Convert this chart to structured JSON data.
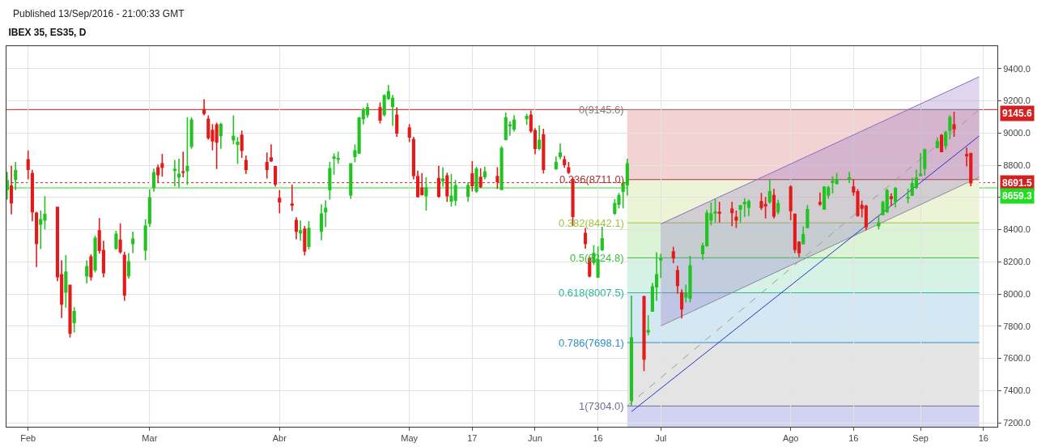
{
  "chart_data": {
    "type": "candlestick",
    "title": "IBEX 35, ES35, D",
    "annotations": [
      "Published 13/Sep/2016 - 21:00:33 GMT"
    ],
    "x": [
      "2016-01-27",
      "2016-01-28",
      "2016-01-29",
      "2016-02-01",
      "2016-02-02",
      "2016-02-03",
      "2016-02-04",
      "2016-02-05",
      "2016-02-08",
      "2016-02-09",
      "2016-02-10",
      "2016-02-11",
      "2016-02-12",
      "2016-02-15",
      "2016-02-16",
      "2016-02-17",
      "2016-02-18",
      "2016-02-19",
      "2016-02-22",
      "2016-02-23",
      "2016-02-24",
      "2016-02-25",
      "2016-02-26",
      "2016-02-29",
      "2016-03-01",
      "2016-03-02",
      "2016-03-03",
      "2016-03-04",
      "2016-03-07",
      "2016-03-08",
      "2016-03-09",
      "2016-03-10",
      "2016-03-11",
      "2016-03-14",
      "2016-03-15",
      "2016-03-16",
      "2016-03-17",
      "2016-03-18",
      "2016-03-21",
      "2016-03-22",
      "2016-03-23",
      "2016-03-24",
      "2016-03-29",
      "2016-03-30",
      "2016-03-31",
      "2016-04-01",
      "2016-04-04",
      "2016-04-05",
      "2016-04-06",
      "2016-04-07",
      "2016-04-08",
      "2016-04-11",
      "2016-04-12",
      "2016-04-13",
      "2016-04-14",
      "2016-04-15",
      "2016-04-18",
      "2016-04-19",
      "2016-04-20",
      "2016-04-21",
      "2016-04-22",
      "2016-04-25",
      "2016-04-26",
      "2016-04-27",
      "2016-04-28",
      "2016-04-29",
      "2016-05-02",
      "2016-05-03",
      "2016-05-04",
      "2016-05-05",
      "2016-05-06",
      "2016-05-09",
      "2016-05-10",
      "2016-05-11",
      "2016-05-12",
      "2016-05-13",
      "2016-05-16",
      "2016-05-17",
      "2016-05-18",
      "2016-05-19",
      "2016-05-20",
      "2016-05-23",
      "2016-05-24",
      "2016-05-25",
      "2016-05-26",
      "2016-05-27",
      "2016-05-30",
      "2016-05-31",
      "2016-06-01",
      "2016-06-02",
      "2016-06-03",
      "2016-06-06",
      "2016-06-07",
      "2016-06-08",
      "2016-06-09",
      "2016-06-10",
      "2016-06-13",
      "2016-06-14",
      "2016-06-15",
      "2016-06-16",
      "2016-06-17",
      "2016-06-20",
      "2016-06-21",
      "2016-06-22",
      "2016-06-23",
      "2016-06-24",
      "2016-06-27",
      "2016-06-28",
      "2016-06-29",
      "2016-06-30",
      "2016-07-01",
      "2016-07-04",
      "2016-07-05",
      "2016-07-06",
      "2016-07-07",
      "2016-07-08",
      "2016-07-11",
      "2016-07-12",
      "2016-07-13",
      "2016-07-14",
      "2016-07-15",
      "2016-07-18",
      "2016-07-19",
      "2016-07-20",
      "2016-07-21",
      "2016-07-22",
      "2016-07-25",
      "2016-07-26",
      "2016-07-27",
      "2016-07-28",
      "2016-07-29",
      "2016-08-01",
      "2016-08-02",
      "2016-08-03",
      "2016-08-04",
      "2016-08-05",
      "2016-08-08",
      "2016-08-09",
      "2016-08-10",
      "2016-08-11",
      "2016-08-12",
      "2016-08-15",
      "2016-08-16",
      "2016-08-17",
      "2016-08-18",
      "2016-08-19",
      "2016-08-22",
      "2016-08-23",
      "2016-08-24",
      "2016-08-25",
      "2016-08-26",
      "2016-08-29",
      "2016-08-30",
      "2016-08-31",
      "2016-09-01",
      "2016-09-02",
      "2016-09-05",
      "2016-09-06",
      "2016-09-07",
      "2016-09-08",
      "2016-09-09",
      "2016-09-12",
      "2016-09-13"
    ],
    "ohlc": [
      [
        8648,
        8759,
        8586,
        8704
      ],
      [
        8670,
        8796,
        8494,
        8566
      ],
      [
        8712,
        8821,
        8645,
        8766
      ],
      [
        8834,
        8892,
        8712,
        8774
      ],
      [
        8749,
        8771,
        8452,
        8511
      ],
      [
        8502,
        8511,
        8167,
        8314
      ],
      [
        8435,
        8519,
        8279,
        8462
      ],
      [
        8460,
        8608,
        8402,
        8494
      ],
      [
        8539,
        8539,
        8079,
        8108
      ],
      [
        8120,
        8209,
        7851,
        7937
      ],
      [
        8012,
        8242,
        7915,
        8136
      ],
      [
        8054,
        8054,
        7730,
        7756
      ],
      [
        7823,
        7918,
        7761,
        7890
      ],
      [
        8113,
        8209,
        8066,
        8170
      ],
      [
        8230,
        8247,
        8083,
        8108
      ],
      [
        8150,
        8363,
        8133,
        8346
      ],
      [
        8392,
        8472,
        8251,
        8271
      ],
      [
        8271,
        8331,
        8103,
        8133
      ],
      [
        8284,
        8393,
        8276,
        8371
      ],
      [
        8334,
        8439,
        8251,
        8264
      ],
      [
        8240,
        8262,
        7957,
        7994
      ],
      [
        8113,
        8254,
        8096,
        8200
      ],
      [
        8314,
        8388,
        8254,
        8341
      ],
      [
        8274,
        8464,
        8209,
        8422
      ],
      [
        8440,
        8650,
        8418,
        8598
      ],
      [
        8662,
        8779,
        8636,
        8754
      ],
      [
        8784,
        8804,
        8690,
        8742
      ],
      [
        8809,
        8871,
        8729,
        8788
      ],
      [
        8769,
        8833,
        8670,
        8774
      ],
      [
        8727,
        8841,
        8662,
        8744
      ],
      [
        8759,
        8885,
        8725,
        8756
      ],
      [
        8767,
        9098,
        8678,
        8791
      ],
      [
        8918,
        9098,
        8902,
        9081
      ],
      [
        9145,
        9210,
        9110,
        9123
      ],
      [
        9086,
        9110,
        8959,
        8972
      ],
      [
        9016,
        9056,
        8892,
        8952
      ],
      [
        9051,
        9064,
        8776,
        8944
      ],
      [
        8984,
        9064,
        8902,
        9053
      ],
      [
        8959,
        9110,
        8930,
        8980
      ],
      [
        8930,
        8975,
        8808,
        8942
      ],
      [
        8986,
        9016,
        8846,
        8893
      ],
      [
        8829,
        8861,
        8746,
        8774
      ],
      [
        8816,
        8880,
        8717,
        8774
      ],
      [
        8845,
        8930,
        8821,
        8828
      ],
      [
        8791,
        8796,
        8667,
        8683
      ],
      [
        8594,
        8645,
        8502,
        8573
      ],
      [
        8558,
        8679,
        8516,
        8553
      ],
      [
        8457,
        8477,
        8340,
        8390
      ],
      [
        8381,
        8457,
        8331,
        8393
      ],
      [
        8402,
        8423,
        8239,
        8267
      ],
      [
        8296,
        8452,
        8276,
        8407
      ],
      [
        8390,
        8558,
        8334,
        8497
      ],
      [
        8511,
        8581,
        8415,
        8532
      ],
      [
        8648,
        8821,
        8586,
        8779
      ],
      [
        8845,
        8875,
        8741,
        8850
      ],
      [
        8838,
        8885,
        8809,
        8841
      ],
      [
        8616,
        8813,
        8591,
        8809
      ],
      [
        8855,
        8930,
        8818,
        8890
      ],
      [
        8876,
        9101,
        8871,
        9093
      ],
      [
        9090,
        9157,
        9053,
        9143
      ],
      [
        9115,
        9187,
        9095,
        9157
      ],
      [
        9157,
        9190,
        9059,
        9081
      ],
      [
        9115,
        9241,
        9103,
        9232
      ],
      [
        9215,
        9299,
        9207,
        9257
      ],
      [
        9165,
        9237,
        9044,
        9215
      ],
      [
        9111,
        9160,
        8977,
        9001
      ],
      [
        9031,
        9056,
        8944,
        8975
      ],
      [
        8960,
        8977,
        8712,
        8737
      ],
      [
        8729,
        8766,
        8600,
        8606
      ],
      [
        8658,
        8751,
        8611,
        8618
      ],
      [
        8611,
        8725,
        8519,
        8658
      ],
      [
        8717,
        8796,
        8598,
        8608
      ],
      [
        8704,
        8788,
        8667,
        8714
      ],
      [
        8734,
        8754,
        8573,
        8611
      ],
      [
        8578,
        8746,
        8544,
        8608
      ],
      [
        8583,
        8709,
        8549,
        8673
      ],
      [
        8608,
        8695,
        8573,
        8673
      ],
      [
        8746,
        8826,
        8637,
        8673
      ],
      [
        8640,
        8791,
        8628,
        8776
      ],
      [
        8724,
        8782,
        8658,
        8667
      ],
      [
        8729,
        8791,
        8712,
        8759
      ],
      [
        8729,
        8788,
        8653,
        8699
      ],
      [
        8650,
        8918,
        8645,
        8905
      ],
      [
        8960,
        9128,
        8955,
        9095
      ],
      [
        9046,
        9073,
        8984,
        9051
      ],
      [
        9026,
        9111,
        9009,
        9081
      ],
      [
        9090,
        9120,
        9051,
        9103
      ],
      [
        9111,
        9140,
        9002,
        9014
      ],
      [
        9014,
        9031,
        8868,
        8905
      ],
      [
        8905,
        9048,
        8893,
        8955
      ],
      [
        8989,
        9027,
        8749,
        8774
      ],
      [
        8779,
        8855,
        8771,
        8818
      ],
      [
        8855,
        8935,
        8838,
        8875
      ],
      [
        8834,
        8858,
        8784,
        8804
      ],
      [
        8784,
        8821,
        8746,
        8757
      ],
      [
        8712,
        8724,
        8422,
        8482
      ],
      [
        8376,
        8410,
        8281,
        8314
      ],
      [
        8220,
        8230,
        8103,
        8113
      ],
      [
        8197,
        8304,
        8180,
        8251
      ],
      [
        8105,
        8296,
        8100,
        8212
      ],
      [
        8276,
        8418,
        8267,
        8343
      ],
      [
        8502,
        8590,
        8491,
        8561
      ],
      [
        8558,
        8628,
        8532,
        8611
      ],
      [
        8637,
        8704,
        8532,
        8687
      ],
      [
        8678,
        8841,
        8611,
        8809
      ],
      [
        7339,
        7990,
        7304,
        7727
      ],
      [
        7982,
        7990,
        7521,
        7596
      ],
      [
        7764,
        7868,
        7744,
        7772
      ],
      [
        7893,
        8069,
        7890,
        8044
      ],
      [
        8044,
        8259,
        7957,
        8120
      ],
      [
        8212,
        8251,
        8100,
        8222
      ],
      [
        8262,
        8293,
        8192,
        8225
      ],
      [
        8145,
        8175,
        8002,
        8053
      ],
      [
        8007,
        8029,
        7848,
        7907
      ],
      [
        7982,
        8058,
        7948,
        8002
      ],
      [
        7974,
        8237,
        7948,
        8175
      ],
      [
        8251,
        8318,
        8212,
        8298
      ],
      [
        8301,
        8522,
        8293,
        8502
      ],
      [
        8460,
        8569,
        8427,
        8497
      ],
      [
        8504,
        8590,
        8444,
        8509
      ],
      [
        8507,
        8573,
        8444,
        8502
      ],
      [
        8527,
        8573,
        8422,
        8506
      ],
      [
        8477,
        8519,
        8410,
        8460
      ],
      [
        8527,
        8553,
        8444,
        8548
      ],
      [
        8561,
        8595,
        8480,
        8569
      ],
      [
        8539,
        8586,
        8485,
        8573
      ],
      [
        8573,
        8628,
        8522,
        8539
      ],
      [
        8556,
        8603,
        8469,
        8548
      ],
      [
        8573,
        8712,
        8561,
        8637
      ],
      [
        8611,
        8653,
        8469,
        8485
      ],
      [
        8511,
        8586,
        8494,
        8561
      ],
      [
        8664,
        8676,
        8458,
        8518
      ],
      [
        8495,
        8500,
        8254,
        8277
      ],
      [
        8321,
        8329,
        8229,
        8257
      ],
      [
        8313,
        8421,
        8308,
        8368
      ],
      [
        8413,
        8552,
        8408,
        8525
      ],
      [
        8567,
        8630,
        8547,
        8560
      ],
      [
        8528,
        8669,
        8525,
        8664
      ],
      [
        8614,
        8672,
        8592,
        8659
      ],
      [
        8694,
        8731,
        8625,
        8701
      ],
      [
        8686,
        8753,
        8681,
        8709
      ],
      [
        8714,
        8759,
        8689,
        8721
      ],
      [
        8664,
        8714,
        8610,
        8635
      ],
      [
        8635,
        8652,
        8480,
        8488
      ],
      [
        8550,
        8580,
        8476,
        8533
      ],
      [
        8545,
        8552,
        8396,
        8418
      ],
      [
        8425,
        8488,
        8401,
        8441
      ],
      [
        8493,
        8580,
        8488,
        8569
      ],
      [
        8513,
        8655,
        8502,
        8642
      ],
      [
        8602,
        8625,
        8547,
        8594
      ],
      [
        8575,
        8664,
        8538,
        8655
      ],
      [
        8597,
        8655,
        8564,
        8600
      ],
      [
        8614,
        8722,
        8609,
        8686
      ],
      [
        8664,
        8773,
        8652,
        8719
      ],
      [
        8736,
        8876,
        8731,
        8743
      ],
      [
        8781,
        8903,
        8736,
        8896
      ],
      [
        8910,
        8973,
        8907,
        8947
      ],
      [
        8985,
        8994,
        8881,
        8885
      ],
      [
        8923,
        9015,
        8898,
        9002
      ],
      [
        9017,
        9111,
        8960,
        9097
      ],
      [
        9050,
        9132,
        8977,
        9027
      ],
      [
        8865,
        8910,
        8793,
        8860
      ],
      [
        8873,
        8876,
        8669,
        8691.5
      ]
    ],
    "colors": [
      "#22c322",
      "#e31b1b",
      "#22c322",
      "#e31b1b",
      "#e31b1b",
      "#e31b1b",
      "#22c322",
      "#22c322",
      "#e31b1b",
      "#e31b1b",
      "#22c322",
      "#e31b1b",
      "#22c322",
      "#22c322",
      "#e31b1b",
      "#22c322",
      "#e31b1b",
      "#e31b1b",
      "#22c322",
      "#e31b1b",
      "#e31b1b",
      "#22c322",
      "#22c322",
      "#22c322",
      "#22c322",
      "#22c322",
      "#e31b1b",
      "#e31b1b",
      "#22c322",
      "#22c322",
      "#e31b1b",
      "#22c322",
      "#22c322",
      "#e31b1b",
      "#e31b1b",
      "#e31b1b",
      "#e31b1b",
      "#22c322",
      "#22c322",
      "#22c322",
      "#e31b1b",
      "#e31b1b",
      "#e31b1b",
      "#e31b1b",
      "#e31b1b",
      "#e31b1b",
      "#e31b1b",
      "#e31b1b",
      "#22c322",
      "#e31b1b",
      "#22c322",
      "#22c322",
      "#22c322",
      "#22c322",
      "#22c322",
      "#22c322",
      "#22c322",
      "#22c322",
      "#22c322",
      "#22c322",
      "#22c322",
      "#e31b1b",
      "#22c322",
      "#22c322",
      "#22c322",
      "#e31b1b",
      "#e31b1b",
      "#e31b1b",
      "#e31b1b",
      "#e31b1b",
      "#22c322",
      "#e31b1b",
      "#22c322",
      "#e31b1b",
      "#22c322",
      "#22c322",
      "#22c322",
      "#e31b1b",
      "#22c322",
      "#e31b1b",
      "#22c322",
      "#e31b1b",
      "#22c322",
      "#22c322",
      "#22c322",
      "#22c322",
      "#22c322",
      "#e31b1b",
      "#e31b1b",
      "#22c322",
      "#e31b1b",
      "#22c322",
      "#22c322",
      "#e31b1b",
      "#e31b1b",
      "#e31b1b",
      "#e31b1b",
      "#e31b1b",
      "#22c322",
      "#22c322",
      "#22c322",
      "#22c322",
      "#22c322",
      "#22c322",
      "#22c322",
      "#22c322",
      "#e31b1b",
      "#22c322",
      "#22c322",
      "#22c322",
      "#22c322",
      "#e31b1b",
      "#e31b1b",
      "#e31b1b",
      "#22c322",
      "#22c322",
      "#22c322",
      "#22c322",
      "#22c322",
      "#22c322",
      "#e31b1b",
      "#e31b1b",
      "#e31b1b",
      "#22c322",
      "#22c322",
      "#22c322",
      "#e31b1b",
      "#e31b1b",
      "#22c322",
      "#e31b1b",
      "#22c322",
      "#e31b1b",
      "#e31b1b",
      "#e31b1b",
      "#22c322",
      "#22c322",
      "#e31b1b",
      "#22c322",
      "#22c322",
      "#22c322",
      "#22c322",
      "#22c322",
      "#e31b1b",
      "#e31b1b",
      "#e31b1b",
      "#e31b1b",
      "#22c322",
      "#22c322",
      "#22c322",
      "#e31b1b",
      "#22c322",
      "#22c322",
      "#22c322",
      "#22c322",
      "#22c322",
      "#22c322",
      "#22c322",
      "#e31b1b",
      "#22c322",
      "#22c322",
      "#e31b1b",
      "#e31b1b",
      "#e31b1b"
    ],
    "series": [
      {
        "type": "line",
        "x": [
          "2016-07-01",
          "2016-09-15"
        ],
        "values": [
          8435,
          9350
        ],
        "lower": [
          7801,
          8726
        ],
        "upper": [
          8435,
          9350
        ],
        "color": "#8c6bc2"
      },
      {
        "type": "line",
        "x": [
          "2016-07-01",
          "2016-09-15"
        ],
        "values": [
          7801,
          8726
        ],
        "color": "#8a8a99"
      },
      {
        "type": "line",
        "x": [
          "2016-06-24",
          "2016-09-15"
        ],
        "values": [
          7269,
          8982
        ],
        "color": "#2233cc"
      },
      {
        "type": "line",
        "x": [
          "2016-06-23",
          "2016-09-15"
        ],
        "values": [
          7304.0,
          9145.6
        ],
        "color": "#999999",
        "line_style": "dashed"
      }
    ],
    "ref_lines": [
      {
        "axis": "y",
        "value": 9145.6,
        "label": "9145.6",
        "color": "#d42020",
        "line_style": "solid"
      },
      {
        "axis": "y",
        "value": 8691.5,
        "label": "8691.5",
        "color": "#d42020",
        "line_style": "dotted"
      },
      {
        "axis": "y",
        "value": 8659.3,
        "label": "8659.3",
        "color": "#22dd22",
        "line_style": "solid"
      },
      {
        "axis": "y",
        "value": 9145.6,
        "label": "0(9145.6)",
        "color": "#808080"
      },
      {
        "axis": "y",
        "value": 8711.0,
        "label": "0.236(8711.0)",
        "color": "#b03030"
      },
      {
        "axis": "y",
        "value": 8442.1,
        "label": "0.382(8442.1)",
        "color": "#9ac43a"
      },
      {
        "axis": "y",
        "value": 8224.8,
        "label": "0.5(8224.8)",
        "color": "#3cbf3c"
      },
      {
        "axis": "y",
        "value": 8007.5,
        "label": "0.618(8007.5)",
        "color": "#2ab59a"
      },
      {
        "axis": "y",
        "value": 7698.1,
        "label": "0.786(7698.1)",
        "color": "#2b8fc4"
      },
      {
        "axis": "y",
        "value": 7304.0,
        "label": "1(7304.0)",
        "color": "#6f6f8f"
      }
    ],
    "bands": [
      {
        "axis": "y",
        "from": 8711.0,
        "to": 9145.6,
        "color": "#f2d2d2"
      },
      {
        "axis": "y",
        "from": 8442.1,
        "to": 8711.0,
        "color": "#edf3d6"
      },
      {
        "axis": "y",
        "from": 8224.8,
        "to": 8442.1,
        "color": "#dcf3d6"
      },
      {
        "axis": "y",
        "from": 8007.5,
        "to": 8224.8,
        "color": "#d6f2e6"
      },
      {
        "axis": "y",
        "from": 7698.1,
        "to": 8007.5,
        "color": "#d4e8f3"
      },
      {
        "axis": "y",
        "from": 7304.0,
        "to": 7698.1,
        "color": "#e4e4e4"
      },
      {
        "axis": "y",
        "from": 7175,
        "to": 7304.0,
        "color": "#d2d2f2"
      }
    ],
    "xlim": [
      "2016-01-26T20:00",
      "2016-09-19T08:00"
    ],
    "xticks": [
      {
        "value": "2016-02-01",
        "label": "Feb"
      },
      {
        "value": "2016-03-01",
        "label": "Mar"
      },
      {
        "value": "2016-04-01",
        "label": "Abr"
      },
      {
        "value": "2016-05-02",
        "label": "May"
      },
      {
        "value": "2016-05-17",
        "label": "17"
      },
      {
        "value": "2016-06-01",
        "label": "Jun"
      },
      {
        "value": "2016-06-16",
        "label": "16"
      },
      {
        "value": "2016-07-01",
        "label": "Jul"
      },
      {
        "value": "2016-08-01",
        "label": "Ago"
      },
      {
        "value": "2016-08-16",
        "label": "16"
      },
      {
        "value": "2016-09-01",
        "label": "Sep"
      },
      {
        "value": "2016-09-16",
        "label": "16"
      }
    ],
    "ylim": [
      7175,
      9540
    ],
    "yticks": [
      {
        "value": 7200,
        "label": "7200.0"
      },
      {
        "value": 7400,
        "label": "7400.0"
      },
      {
        "value": 7600,
        "label": "7600.0"
      },
      {
        "value": 7800,
        "label": "7800.0"
      },
      {
        "value": 8000,
        "label": "8000.0"
      },
      {
        "value": 8200,
        "label": "8200.0"
      },
      {
        "value": 8400,
        "label": "8400.0"
      },
      {
        "value": 8600,
        "label": null
      },
      {
        "value": 8800,
        "label": "8800.0"
      },
      {
        "value": 9000,
        "label": "9000.0"
      },
      {
        "value": 9200,
        "label": "9200.0"
      },
      {
        "value": 9400,
        "label": "9400.0"
      }
    ],
    "grid": true
  }
}
